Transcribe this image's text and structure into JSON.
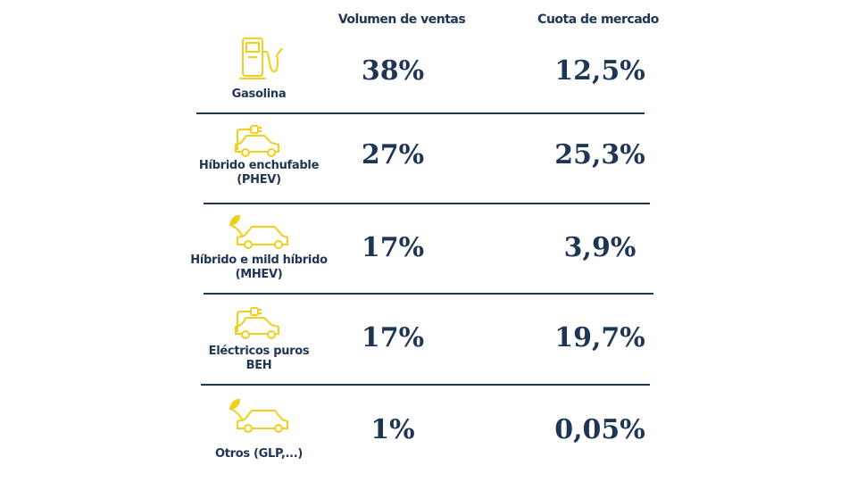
{
  "headers": {
    "volume": "Volumen de ventas",
    "share": "Cuota de mercado"
  },
  "colors": {
    "text": "#1e3556",
    "icon": "#f2cf1a"
  },
  "rows": [
    {
      "label1": "Gasolina",
      "label2": "",
      "icon": "fuel-pump-icon",
      "volume": "38%",
      "share": "12,5%"
    },
    {
      "label1": "Híbrido enchufable",
      "label2": "(PHEV)",
      "icon": "plug-in-car-icon",
      "volume": "27%",
      "share": "25,3%"
    },
    {
      "label1": "Híbrido e mild híbrido",
      "label2": "(MHEV)",
      "icon": "leaf-car-icon",
      "volume": "17%",
      "share": "3,9%"
    },
    {
      "label1": "Eléctricos puros",
      "label2": "BEH",
      "icon": "electric-car-icon",
      "volume": "17%",
      "share": "19,7%"
    },
    {
      "label1": "Otros (GLP,...)",
      "label2": "",
      "icon": "leaf-car-icon",
      "volume": "1%",
      "share": "0,05%"
    }
  ]
}
